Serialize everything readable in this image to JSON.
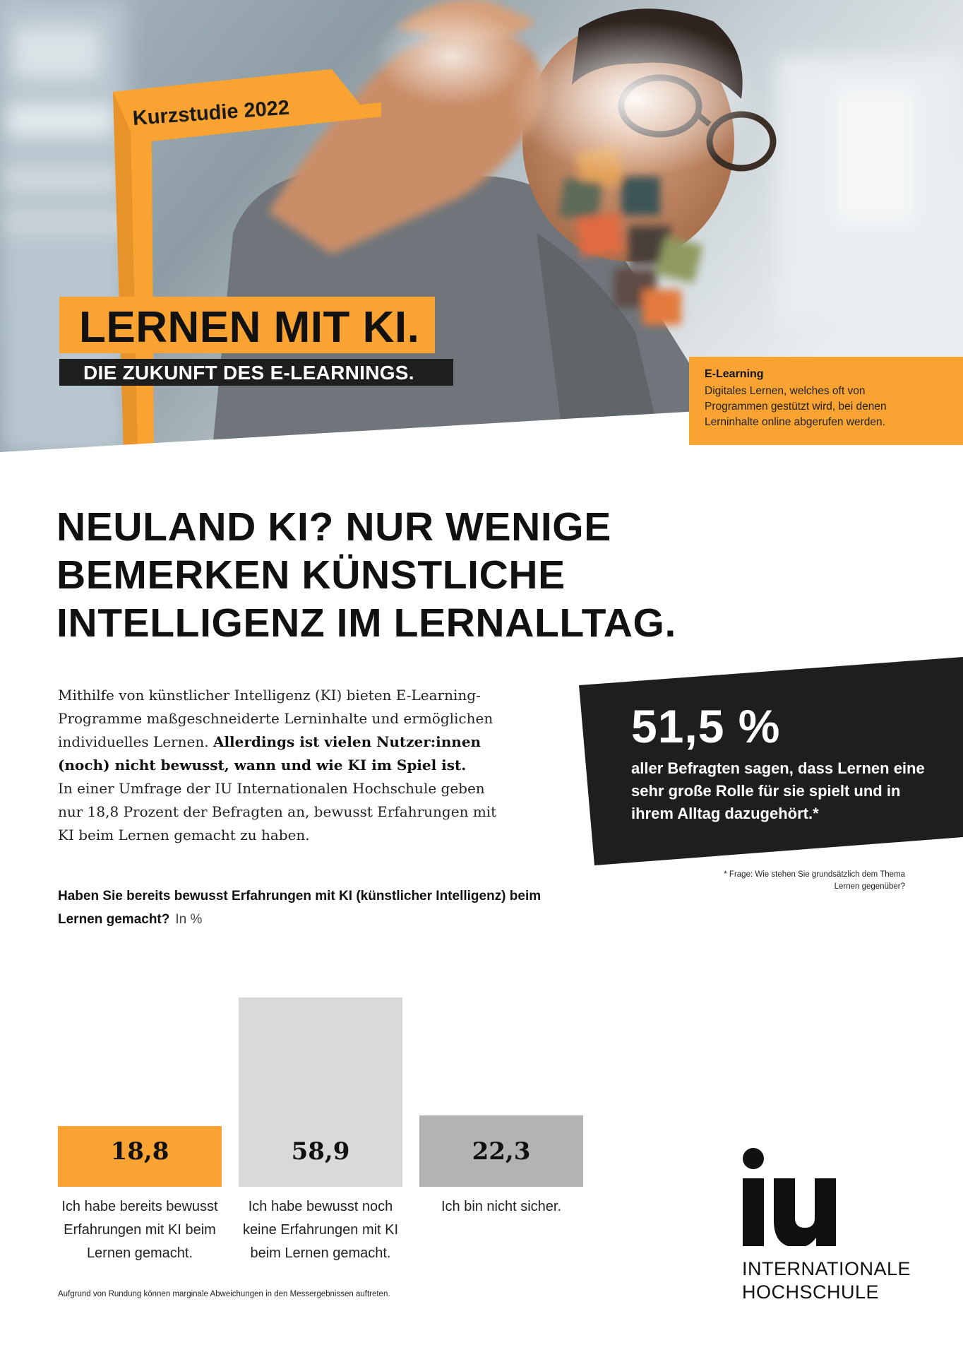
{
  "hero": {
    "kicker": "Kurzstudie 2022",
    "title": "LERNEN MIT KI.",
    "subtitle": "DIE ZUKUNFT DES E-LEARNINGS.",
    "definition": {
      "term": "E-Learning",
      "text": "Digitales Lernen, welches oft von Programmen gestützt wird, bei denen Lerninhalte online abgerufen werden."
    }
  },
  "headline": {
    "lines": [
      "NEULAND KI? NUR WENIGE",
      "BEMERKEN KÜNSTLICHE",
      "INTELLIGENZ IM LERNALLTAG."
    ]
  },
  "intro": {
    "part1": "Mithilfe von künstlicher Intelligenz (KI) bieten E-Learning-Programme maßgeschneiderte Lerninhalte und ermöglichen individuelles Lernen. ",
    "bold": "Allerdings ist vielen Nutzer:innen (noch) nicht bewusst, wann und wie KI im Spiel ist.",
    "part2": "In einer Umfrage der IU Internationalen Hochschule geben nur 18,8 Prozent der Befragten an, bewusst Erfahrungen mit KI beim Lernen gemacht zu haben."
  },
  "stat": {
    "value": "51,5 %",
    "text": "aller Befragten sagen, dass Lernen eine sehr große Rolle für sie spielt und in ihrem Alltag dazugehört.*",
    "footnote": "* Frage: Wie stehen Sie grundsätzlich dem Thema Lernen gegenüber?"
  },
  "chart_data": {
    "type": "bar",
    "title": "Haben Sie bereits bewusst Erfahrungen mit KI (künstlicher Intelligenz) beim Lernen gemacht?",
    "unit": "In %",
    "categories": [
      "Ich habe bereits bewusst Erfahrungen mit KI beim Lernen gemacht.",
      "Ich habe bewusst noch keine Erfahrungen mit KI beim Lernen gemacht.",
      "Ich bin nicht sicher."
    ],
    "values": [
      18.8,
      58.9,
      22.3
    ],
    "value_labels": [
      "18,8",
      "58,9",
      "22,3"
    ],
    "colors": [
      "#f8a332",
      "#d9d9d9",
      "#b3b3b3"
    ],
    "ylim": [
      0,
      60
    ],
    "grid": false
  },
  "notes": {
    "rounding": "Aufgrund von Rundung können marginale Abweichungen in den Messergebnissen auftreten."
  },
  "logo": {
    "mark": "iu",
    "line1": "INTERNATIONALE",
    "line2": "HOCHSCHULE"
  },
  "colors": {
    "accent": "#f8a332",
    "dark": "#1e1e1e",
    "bar_light": "#d9d9d9",
    "bar_mid": "#b3b3b3"
  }
}
